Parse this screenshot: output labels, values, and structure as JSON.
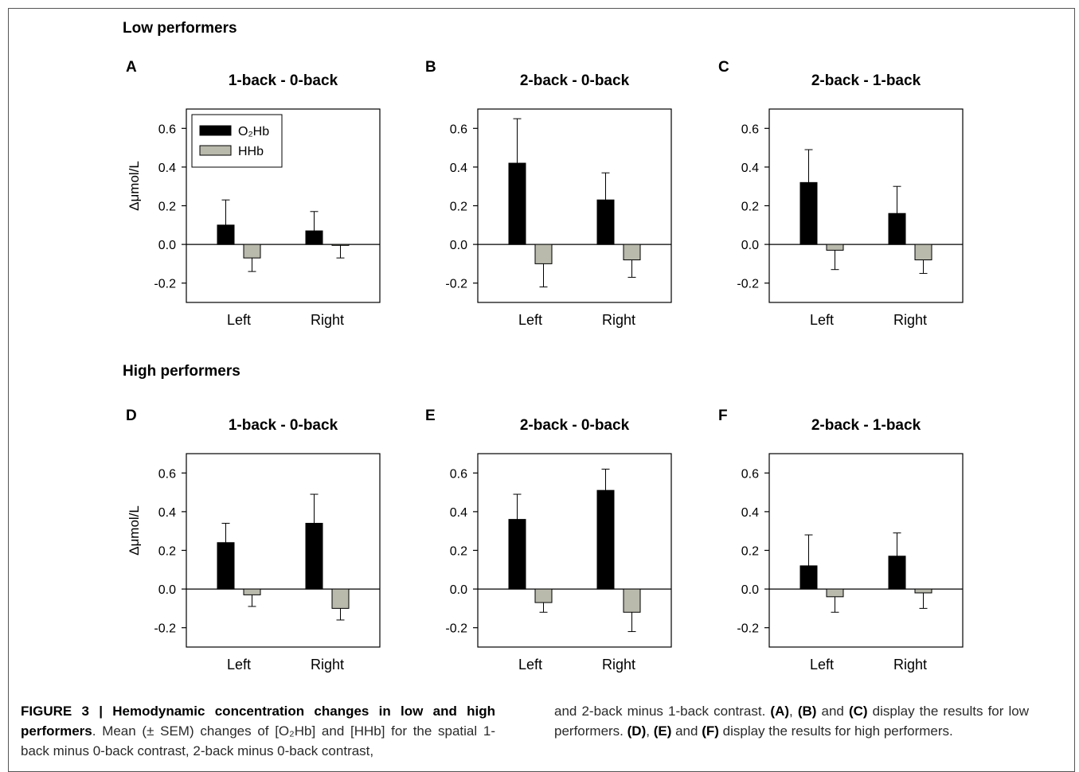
{
  "groups": [
    {
      "title": "Low performers",
      "panels": [
        0,
        1,
        2
      ]
    },
    {
      "title": "High performers",
      "panels": [
        3,
        4,
        5
      ]
    }
  ],
  "y_axis_label": "Δμmol/L",
  "legend": [
    {
      "name": "O₂Hb",
      "color": "#000000"
    },
    {
      "name": "HHb",
      "color": "#b9b9ac"
    }
  ],
  "chart_data": [
    {
      "type": "bar",
      "letter": "A",
      "title": "1-back - 0-back",
      "categories": [
        "Left",
        "Right"
      ],
      "series": [
        {
          "name": "O₂Hb",
          "values": [
            0.1,
            0.07
          ],
          "errors": [
            0.13,
            0.1
          ]
        },
        {
          "name": "HHb",
          "values": [
            -0.07,
            -0.005
          ],
          "errors": [
            0.07,
            0.065
          ]
        }
      ],
      "ylim": [
        -0.3,
        0.7
      ],
      "yticks": [
        -0.2,
        0.0,
        0.2,
        0.4,
        0.6
      ],
      "ylabel": "Δμmol/L",
      "legend": "top-left"
    },
    {
      "type": "bar",
      "letter": "B",
      "title": "2-back - 0-back",
      "categories": [
        "Left",
        "Right"
      ],
      "series": [
        {
          "name": "O₂Hb",
          "values": [
            0.42,
            0.23
          ],
          "errors": [
            0.23,
            0.14
          ]
        },
        {
          "name": "HHb",
          "values": [
            -0.1,
            -0.08
          ],
          "errors": [
            0.12,
            0.09
          ]
        }
      ],
      "ylim": [
        -0.3,
        0.7
      ],
      "yticks": [
        -0.2,
        0.0,
        0.2,
        0.4,
        0.6
      ],
      "ylabel": ""
    },
    {
      "type": "bar",
      "letter": "C",
      "title": "2-back - 1-back",
      "categories": [
        "Left",
        "Right"
      ],
      "series": [
        {
          "name": "O₂Hb",
          "values": [
            0.32,
            0.16
          ],
          "errors": [
            0.17,
            0.14
          ]
        },
        {
          "name": "HHb",
          "values": [
            -0.03,
            -0.08
          ],
          "errors": [
            0.1,
            0.07
          ]
        }
      ],
      "ylim": [
        -0.3,
        0.7
      ],
      "yticks": [
        -0.2,
        0.0,
        0.2,
        0.4,
        0.6
      ],
      "ylabel": ""
    },
    {
      "type": "bar",
      "letter": "D",
      "title": "1-back - 0-back",
      "categories": [
        "Left",
        "Right"
      ],
      "series": [
        {
          "name": "O₂Hb",
          "values": [
            0.24,
            0.34
          ],
          "errors": [
            0.1,
            0.15
          ]
        },
        {
          "name": "HHb",
          "values": [
            -0.03,
            -0.1
          ],
          "errors": [
            0.06,
            0.06
          ]
        }
      ],
      "ylim": [
        -0.3,
        0.7
      ],
      "yticks": [
        -0.2,
        0.0,
        0.2,
        0.4,
        0.6
      ],
      "ylabel": "Δμmol/L"
    },
    {
      "type": "bar",
      "letter": "E",
      "title": "2-back - 0-back",
      "categories": [
        "Left",
        "Right"
      ],
      "series": [
        {
          "name": "O₂Hb",
          "values": [
            0.36,
            0.51
          ],
          "errors": [
            0.13,
            0.11
          ]
        },
        {
          "name": "HHb",
          "values": [
            -0.07,
            -0.12
          ],
          "errors": [
            0.05,
            0.1
          ]
        }
      ],
      "ylim": [
        -0.3,
        0.7
      ],
      "yticks": [
        -0.2,
        0.0,
        0.2,
        0.4,
        0.6
      ],
      "ylabel": ""
    },
    {
      "type": "bar",
      "letter": "F",
      "title": "2-back - 1-back",
      "categories": [
        "Left",
        "Right"
      ],
      "series": [
        {
          "name": "O₂Hb",
          "values": [
            0.12,
            0.17
          ],
          "errors": [
            0.16,
            0.12
          ]
        },
        {
          "name": "HHb",
          "values": [
            -0.04,
            -0.02
          ],
          "errors": [
            0.08,
            0.08
          ]
        }
      ],
      "ylim": [
        -0.3,
        0.7
      ],
      "yticks": [
        -0.2,
        0.0,
        0.2,
        0.4,
        0.6
      ],
      "ylabel": ""
    }
  ],
  "caption": {
    "lead": "FIGURE 3 | Hemodynamic concentration changes in low and high performers",
    "part1": ". Mean (± SEM) changes of [O₂Hb] and [HHb] for the spatial 1-back minus 0-back contrast, 2-back minus 0-back contrast,",
    "part2a": "and 2-back minus 1-back contrast. ",
    "refA": "(A)",
    "sep1": ", ",
    "refB": "(B)",
    "and1": " and ",
    "refC": "(C)",
    "part2b": " display the results for low performers. ",
    "refD": "(D)",
    "sep2": ", ",
    "refE": "(E)",
    "and2": " and ",
    "refF": "(F)",
    "part2c": " display the results for high performers."
  }
}
